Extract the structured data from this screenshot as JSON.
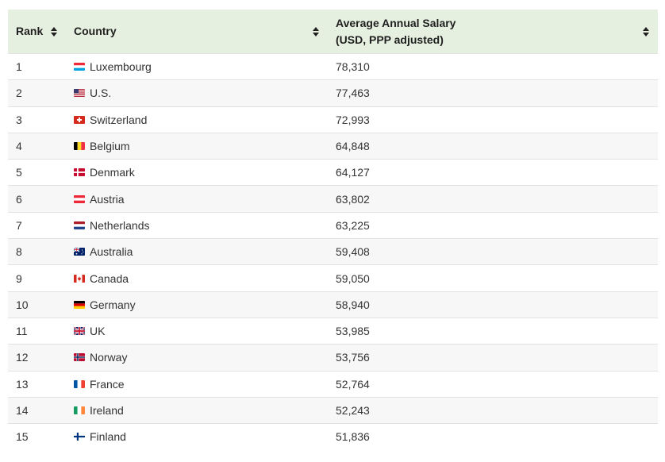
{
  "table": {
    "headers": {
      "rank": "Rank",
      "country": "Country",
      "salary_line1": "Average Annual Salary",
      "salary_line2": "(USD, PPP adjusted)"
    },
    "rows": [
      {
        "rank": "1",
        "country": "Luxembourg",
        "flag": "flag-luxembourg-icon",
        "salary": "78,310"
      },
      {
        "rank": "2",
        "country": "U.S.",
        "flag": "flag-us-icon",
        "salary": "77,463"
      },
      {
        "rank": "3",
        "country": "Switzerland",
        "flag": "flag-switzerland-icon",
        "salary": "72,993"
      },
      {
        "rank": "4",
        "country": "Belgium",
        "flag": "flag-belgium-icon",
        "salary": "64,848"
      },
      {
        "rank": "5",
        "country": "Denmark",
        "flag": "flag-denmark-icon",
        "salary": "64,127"
      },
      {
        "rank": "6",
        "country": "Austria",
        "flag": "flag-austria-icon",
        "salary": "63,802"
      },
      {
        "rank": "7",
        "country": "Netherlands",
        "flag": "flag-netherlands-icon",
        "salary": "63,225"
      },
      {
        "rank": "8",
        "country": "Australia",
        "flag": "flag-australia-icon",
        "salary": "59,408"
      },
      {
        "rank": "9",
        "country": "Canada",
        "flag": "flag-canada-icon",
        "salary": "59,050"
      },
      {
        "rank": "10",
        "country": "Germany",
        "flag": "flag-germany-icon",
        "salary": "58,940"
      },
      {
        "rank": "11",
        "country": "UK",
        "flag": "flag-uk-icon",
        "salary": "53,985"
      },
      {
        "rank": "12",
        "country": "Norway",
        "flag": "flag-norway-icon",
        "salary": "53,756"
      },
      {
        "rank": "13",
        "country": "France",
        "flag": "flag-france-icon",
        "salary": "52,764"
      },
      {
        "rank": "14",
        "country": "Ireland",
        "flag": "flag-ireland-icon",
        "salary": "52,243"
      },
      {
        "rank": "15",
        "country": "Finland",
        "flag": "flag-finland-icon",
        "salary": "51,836"
      }
    ]
  },
  "colors": {
    "header_bg": "#e6f0e0",
    "row_alt_bg": "#f7f7f7",
    "border": "#e2e2e2"
  }
}
